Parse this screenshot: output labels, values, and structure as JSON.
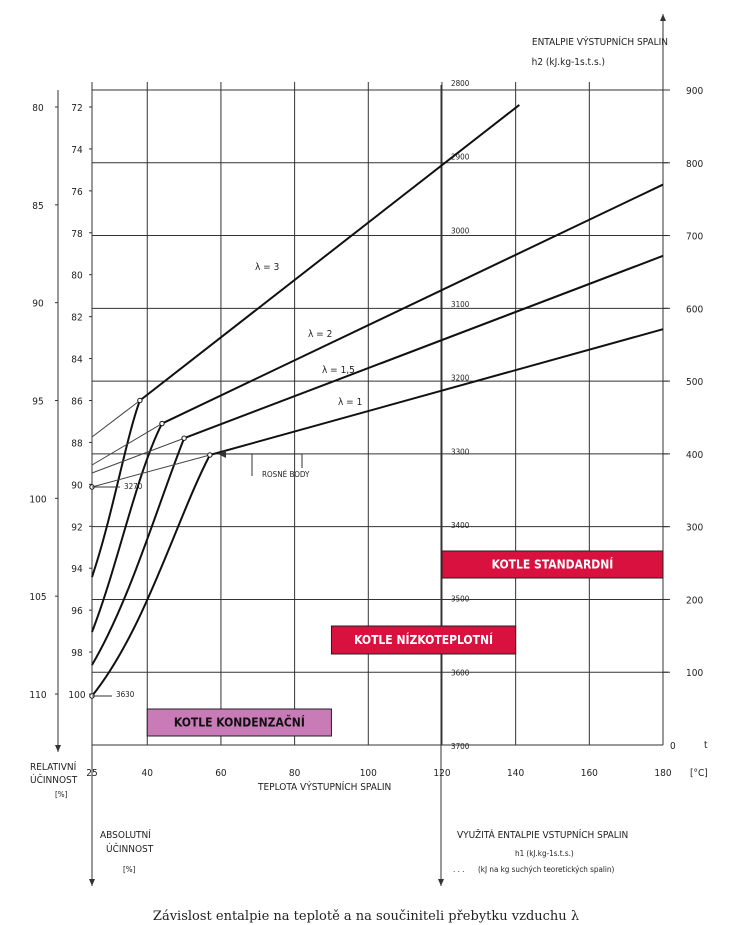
{
  "chart_data": {
    "type": "line",
    "xlabel": "TEPLOTA VÝSTUPNÍCH SPALIN",
    "x_unit": "[°C]",
    "x_ticks": [
      25,
      40,
      60,
      80,
      100,
      120,
      140,
      160,
      180
    ],
    "xlim": [
      25,
      180
    ],
    "left_axes": {
      "relative": {
        "label_lines": [
          "RELATIVNÍ",
          "ÚČINNOST"
        ],
        "unit": "[%]",
        "ticks": [
          80,
          85,
          90,
          95,
          100,
          105,
          110
        ]
      },
      "absolute": {
        "label_lines": [
          "ABSOLUTNÍ",
          "ÚČINNOST"
        ],
        "unit": "[%]",
        "ticks": [
          72,
          74,
          76,
          78,
          80,
          82,
          84,
          86,
          88,
          90,
          92,
          94,
          96,
          98,
          100
        ]
      }
    },
    "right_axis": {
      "title": "ENTALPIE VÝSTUPNÍCH SPALIN",
      "unit": "h2 (kJ.kg-1s.t.s.)",
      "ticks": [
        0,
        100,
        200,
        300,
        400,
        500,
        600,
        700,
        800,
        900
      ],
      "extra_label": "t"
    },
    "inner_axis": {
      "ticks": [
        2800,
        2900,
        3000,
        3100,
        3200,
        3300,
        3400,
        3500,
        3600,
        3700
      ]
    },
    "bottom_right_title": {
      "line1": "VYUŽITÁ ENTALPIE VSTUPNÍCH SPALIN",
      "line2": "h1 (kJ.kg-1s.t.s.)",
      "line3": "(kJ na kg suchých teoretických spalin)",
      "dots": ". . ."
    },
    "series": [
      {
        "name": "λ = 3",
        "x": [
          38,
          141
        ],
        "y": [
          86,
          71.9
        ]
      },
      {
        "name": "λ = 2",
        "x": [
          44,
          180
        ],
        "y": [
          87.1,
          75.7
        ]
      },
      {
        "name": "λ = 1,5",
        "x": [
          50,
          180
        ],
        "y": [
          87.8,
          79.1
        ]
      },
      {
        "name": "λ = 1",
        "x": [
          57,
          180
        ],
        "y": [
          88.6,
          82.6
        ]
      }
    ],
    "annotations": {
      "dew_points": "ROSNÉ BODY",
      "point_upper": "3270",
      "point_lower": "3630"
    },
    "regions": [
      {
        "label": "KOTLE STANDARDNÍ",
        "x_range": [
          120,
          180
        ],
        "color": "#d8113f"
      },
      {
        "label": "KOTLE NÍZKOTEPLOTNÍ",
        "x_range": [
          90,
          140
        ],
        "color": "#d8113f"
      },
      {
        "label": "KOTLE KONDENZAČNÍ",
        "x_range": [
          40,
          90
        ],
        "color": "#c97bb8"
      }
    ],
    "caption": "Závislost entalpie na teplotě a na součiniteli přebytku vzduchu λ"
  }
}
